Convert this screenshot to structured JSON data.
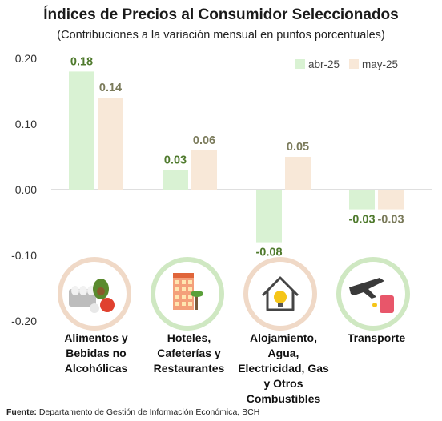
{
  "title": "Índices de Precios al Consumidor Seleccionados",
  "subtitle": "(Contribuciones a la variación mensual en puntos porcentuales)",
  "footer": {
    "label": "Fuente:",
    "text": "Departamento de Gestión de Información Económica, BCH"
  },
  "colors": {
    "abr": "#d9f2d3",
    "may": "#f8e8d8",
    "label_abr": "#4f7a2d",
    "label_may": "#7a7a5a",
    "icon_ring_green": "#cfe8c2",
    "icon_ring_peach": "#f0d9c7"
  },
  "chart_data": {
    "type": "bar",
    "title": "Índices de Precios al Consumidor Seleccionados",
    "subtitle": "(Contribuciones a la variación mensual en puntos porcentuales)",
    "categories": [
      "Alimentos y Bebidas no Alcohólicas",
      "Hoteles, Cafeterías y Restaurantes",
      "Alojamiento, Agua, Electricidad, Gas y Otros Combustibles",
      "Transporte"
    ],
    "category_lines": [
      [
        "Alimentos y",
        "Bebidas no",
        "Alcohólicas"
      ],
      [
        "Hoteles,",
        "Cafeterías y",
        "Restaurantes"
      ],
      [
        "Alojamiento,",
        "Agua,",
        "Electricidad, Gas",
        "y Otros",
        "Combustibles"
      ],
      [
        "Transporte"
      ]
    ],
    "category_icons": [
      "food-basket-icon",
      "hotel-building-icon",
      "house-bulb-icon",
      "airplane-fuel-icon"
    ],
    "series": [
      {
        "name": "abr-25",
        "values": [
          0.18,
          0.03,
          -0.08,
          -0.03
        ],
        "labels": [
          "0.18",
          "0.03",
          "-0.08",
          "-0.03"
        ]
      },
      {
        "name": "may-25",
        "values": [
          0.14,
          0.06,
          0.05,
          -0.03
        ],
        "labels": [
          "0.14",
          "0.06",
          "0.05",
          "-0.03"
        ]
      }
    ],
    "yticks": [
      "0.20",
      "0.10",
      "0.00",
      "-0.10",
      "-0.20"
    ],
    "ytick_values": [
      0.2,
      0.1,
      0.0,
      -0.1,
      -0.2
    ],
    "ylim": [
      -0.2,
      0.2
    ],
    "legend_position": "top-right",
    "grid": false
  }
}
